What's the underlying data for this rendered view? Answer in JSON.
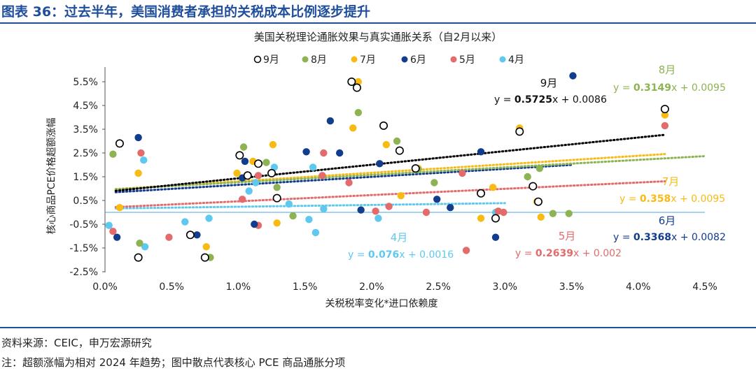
{
  "header": {
    "title": "图表 36：过去半年，美国消费者承担的关税成本比例逐步提升"
  },
  "footer": {
    "source": "资料来源：CEIC，申万宏源研究",
    "note": "注：超额涨幅为相对 2024 年趋势；图中散点代表核心 PCE 商品通胀分项"
  },
  "chart_data": {
    "type": "scatter",
    "title": "美国关税理论通胀效果与真实通胀关系（自2月以来）",
    "xlabel": "关税税率变化*进口依赖度",
    "ylabel": "核心商品PCE价格超额涨幅",
    "xlim": [
      0,
      0.045
    ],
    "ylim": [
      -0.025,
      0.06
    ],
    "xticks": [
      0,
      0.005,
      0.01,
      0.015,
      0.02,
      0.025,
      0.03,
      0.035,
      0.04,
      0.045
    ],
    "xtick_labels": [
      "0.0%",
      "0.5%",
      "1.0%",
      "1.5%",
      "2.0%",
      "2.5%",
      "3.0%",
      "3.5%",
      "4.0%",
      "4.5%"
    ],
    "yticks": [
      -0.025,
      -0.015,
      -0.005,
      0.005,
      0.015,
      0.025,
      0.035,
      0.045,
      0.055
    ],
    "ytick_labels": [
      "-2.5%",
      "-1.5%",
      "-0.5%",
      "0.5%",
      "1.5%",
      "2.5%",
      "3.5%",
      "4.5%",
      "5.5%"
    ],
    "legend_position": "top",
    "series": [
      {
        "name": "9月",
        "color": "#000000",
        "marker": "hollow",
        "trend": {
          "slope": 0.5725,
          "intercept": 0.0086,
          "x_range": [
            0.0008,
            0.042
          ]
        },
        "equation": {
          "prefix": "y = ",
          "slope": "0.5725",
          "suffix": "x + 0.0086"
        },
        "month_label": "9月",
        "points": [
          [
            0.0011,
            0.029
          ],
          [
            0.0025,
            -0.019
          ],
          [
            0.0075,
            -0.019
          ],
          [
            0.0064,
            -0.0095
          ],
          [
            0.0101,
            0.024
          ],
          [
            0.0107,
            0.0155
          ],
          [
            0.0115,
            0.0205
          ],
          [
            0.0125,
            0.0165
          ],
          [
            0.0129,
            0.006
          ],
          [
            0.0185,
            0.055
          ],
          [
            0.0189,
            0.0525
          ],
          [
            0.0209,
            0.0365
          ],
          [
            0.0221,
            0.026
          ],
          [
            0.0233,
            0.0185
          ],
          [
            0.0282,
            0.008
          ],
          [
            0.0293,
            -0.0025
          ],
          [
            0.0311,
            0.034
          ],
          [
            0.0321,
            0.011
          ],
          [
            0.0325,
            0.0045
          ],
          [
            0.042,
            0.0435
          ]
        ]
      },
      {
        "name": "8月",
        "color": "#8db352",
        "marker": "filled",
        "trend": {
          "slope": 0.3149,
          "intercept": 0.0095,
          "x_range": [
            0.0008,
            0.045
          ]
        },
        "equation": {
          "prefix": "y = ",
          "slope": "0.3149",
          "suffix": "x + 0.0095"
        },
        "month_label": "8月",
        "points": [
          [
            0.0006,
            0.0245
          ],
          [
            0.0026,
            -0.013
          ],
          [
            0.0079,
            -0.019
          ],
          [
            0.0104,
            0.0275
          ],
          [
            0.0121,
            0.021
          ],
          [
            0.0129,
            0.0105
          ],
          [
            0.0141,
            -0.0015
          ],
          [
            0.019,
            0.042
          ],
          [
            0.0219,
            0.03
          ],
          [
            0.0235,
            0.018
          ],
          [
            0.0247,
            0.0125
          ],
          [
            0.0317,
            0.015
          ],
          [
            0.0326,
            0.0185
          ],
          [
            0.0336,
            -0.0005
          ],
          [
            0.0348,
            -0.0005
          ]
        ]
      },
      {
        "name": "7月",
        "color": "#f7bb14",
        "marker": "filled",
        "trend": {
          "slope": 0.358,
          "intercept": 0.0095,
          "x_range": [
            0.0008,
            0.042
          ]
        },
        "equation": {
          "prefix": "y = ",
          "slope": "0.358",
          "suffix": "x + 0.0095"
        },
        "month_label": "7月",
        "points": [
          [
            0.0011,
            0.002
          ],
          [
            0.0025,
            0.0165
          ],
          [
            0.0076,
            -0.0145
          ],
          [
            0.0099,
            0.0165
          ],
          [
            0.0111,
            0.0215
          ],
          [
            0.0126,
            0.0285
          ],
          [
            0.0129,
            -0.0045
          ],
          [
            0.0186,
            0.0355
          ],
          [
            0.019,
            0.055
          ],
          [
            0.0211,
            0.0285
          ],
          [
            0.0222,
            0.007
          ],
          [
            0.0235,
            0.0185
          ],
          [
            0.0282,
            -0.0025
          ],
          [
            0.0291,
            0.0105
          ],
          [
            0.0311,
            0.0355
          ],
          [
            0.0324,
            0.0045
          ],
          [
            0.0327,
            -0.002
          ],
          [
            0.042,
            0.041
          ]
        ]
      },
      {
        "name": "6月",
        "color": "#123c8c",
        "marker": "filled",
        "trend": {
          "slope": 0.3368,
          "intercept": 0.0082,
          "x_range": [
            0.0008,
            0.035
          ]
        },
        "equation": {
          "prefix": "y = ",
          "slope": "0.3368",
          "suffix": "x + 0.0082"
        },
        "month_label": "6月",
        "points": [
          [
            0.0009,
            -0.0105
          ],
          [
            0.0025,
            0.0315
          ],
          [
            0.0069,
            -0.0095
          ],
          [
            0.0103,
            0.0145
          ],
          [
            0.0105,
            0.0215
          ],
          [
            0.0112,
            -0.005
          ],
          [
            0.0151,
            0.0255
          ],
          [
            0.0169,
            0.0385
          ],
          [
            0.0176,
            0.025
          ],
          [
            0.0192,
            0.001
          ],
          [
            0.0206,
            0.0205
          ],
          [
            0.0249,
            0.0055
          ],
          [
            0.0259,
            0.002
          ],
          [
            0.0282,
            0.0255
          ],
          [
            0.0293,
            -0.0105
          ],
          [
            0.0351,
            0.0575
          ]
        ]
      },
      {
        "name": "5月",
        "color": "#e36b6b",
        "marker": "filled",
        "trend": {
          "slope": 0.2639,
          "intercept": 0.002,
          "x_range": [
            0.0008,
            0.042
          ]
        },
        "equation": {
          "prefix": "y = ",
          "slope": "0.2639",
          "suffix": "x + 0.002"
        },
        "month_label": "5月",
        "points": [
          [
            0.0006,
            -0.008
          ],
          [
            0.0027,
            0.025
          ],
          [
            0.0048,
            -0.0105
          ],
          [
            0.0103,
            0.0055
          ],
          [
            0.0115,
            0.0155
          ],
          [
            0.0115,
            -0.0055
          ],
          [
            0.0163,
            0.0155
          ],
          [
            0.0164,
            0.025
          ],
          [
            0.0183,
            0.0125
          ],
          [
            0.0203,
            0.0005
          ],
          [
            0.0213,
            0.0025
          ],
          [
            0.0241,
            0
          ],
          [
            0.0268,
            0.0165
          ],
          [
            0.0271,
            -0.016
          ],
          [
            0.0295,
            0.0005
          ],
          [
            0.0299,
            0
          ],
          [
            0.042,
            0.0365
          ]
        ]
      },
      {
        "name": "4月",
        "color": "#5ec8ef",
        "marker": "filled",
        "trend": {
          "slope": 0.076,
          "intercept": 0.0016,
          "x_range": [
            0.0008,
            0.03
          ]
        },
        "equation": {
          "prefix": "y = ",
          "slope": "0.076",
          "suffix": "x + 0.0016"
        },
        "month_label": "4月",
        "points": [
          [
            0.0003,
            -0.0055
          ],
          [
            0.003,
            -0.0145
          ],
          [
            0.0029,
            0.022
          ],
          [
            0.006,
            -0.004
          ],
          [
            0.0078,
            -0.0025
          ],
          [
            0.0108,
            0.009
          ],
          [
            0.0113,
            0.0125
          ],
          [
            0.0127,
            0.019
          ],
          [
            0.0138,
            0.0035
          ],
          [
            0.0153,
            -0.003
          ],
          [
            0.0156,
            0.019
          ],
          [
            0.0158,
            -0.0085
          ],
          [
            0.0164,
            0.0015
          ],
          [
            0.0205,
            -0.0025
          ],
          [
            0.0293,
            0
          ]
        ]
      }
    ]
  }
}
